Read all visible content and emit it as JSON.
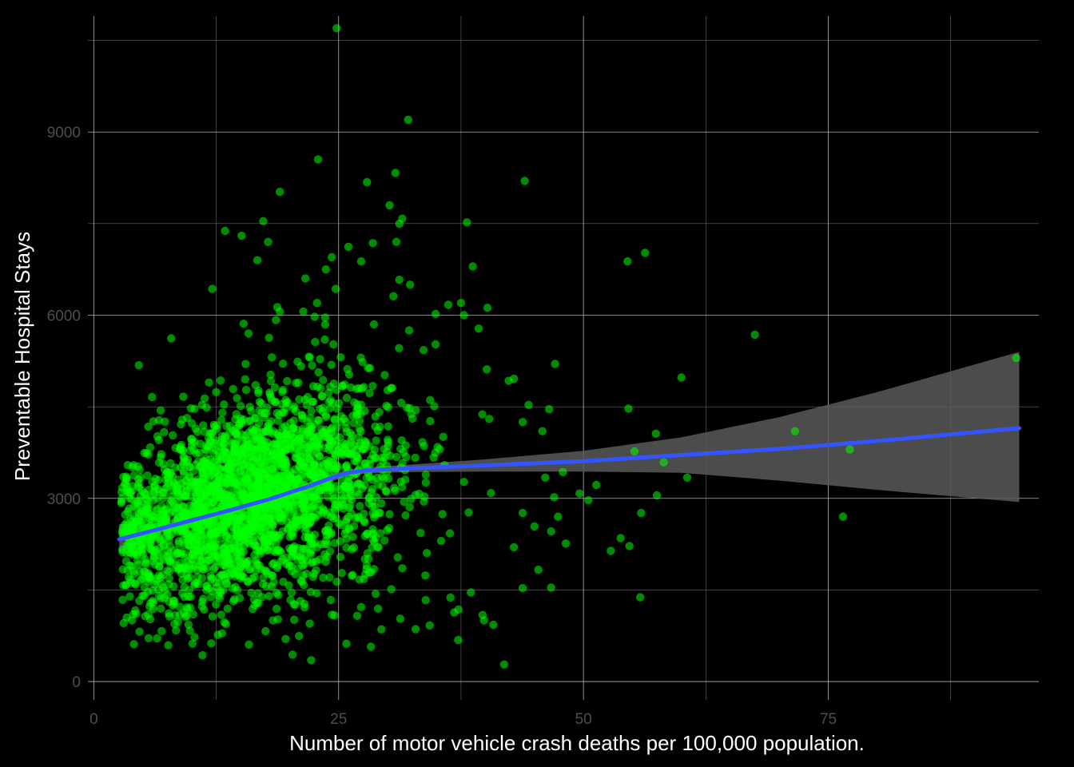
{
  "chart_data": {
    "type": "scatter",
    "title": "",
    "xlabel": "Number of motor vehicle crash deaths per 100,000 population.",
    "ylabel": "Preventable Hospital Stays",
    "xlim": [
      -0.6,
      96.5
    ],
    "ylim": [
      -300,
      10900
    ],
    "x_ticks": [
      0,
      25,
      50,
      75
    ],
    "y_ticks": [
      0,
      3000,
      6000,
      9000
    ],
    "grid": true,
    "background": "dark",
    "colors": {
      "background": "#000000",
      "grid_major": "#b3b3b3",
      "grid_minor": "#666666",
      "points": "#00ff00",
      "trend_line": "#3355ff",
      "confidence_band": "#595959",
      "tick_labels": "#4d4d4d",
      "axis_titles": "#ffffff"
    },
    "series": [
      {
        "points": [
          [
            24.8,
            10700
          ],
          [
            32.1,
            9200
          ],
          [
            22.9,
            8550
          ],
          [
            30.8,
            8330
          ],
          [
            27.9,
            8180
          ],
          [
            19.0,
            8020
          ],
          [
            44.0,
            8200
          ],
          [
            30.2,
            7800
          ],
          [
            31.2,
            7500
          ],
          [
            31.5,
            7580
          ],
          [
            38.1,
            7520
          ],
          [
            17.3,
            7540
          ],
          [
            13.4,
            7380
          ],
          [
            15.1,
            7300
          ],
          [
            17.8,
            7200
          ],
          [
            28.5,
            7180
          ],
          [
            30.9,
            7200
          ],
          [
            26.0,
            7120
          ],
          [
            56.3,
            7020
          ],
          [
            54.5,
            6880
          ],
          [
            24.3,
            6950
          ],
          [
            27.3,
            6880
          ],
          [
            16.7,
            6900
          ],
          [
            23.7,
            6750
          ],
          [
            38.7,
            6800
          ],
          [
            21.6,
            6600
          ],
          [
            31.2,
            6580
          ],
          [
            12.1,
            6430
          ],
          [
            24.7,
            6430
          ],
          [
            32.3,
            6500
          ],
          [
            30.6,
            6310
          ],
          [
            22.8,
            6200
          ],
          [
            36.2,
            6170
          ],
          [
            37.5,
            6200
          ],
          [
            40.2,
            6120
          ],
          [
            21.4,
            6060
          ],
          [
            34.9,
            6020
          ],
          [
            37.8,
            6000
          ],
          [
            19.0,
            6060
          ],
          [
            18.6,
            5920
          ],
          [
            28.6,
            5850
          ],
          [
            15.3,
            5860
          ],
          [
            39.3,
            5780
          ],
          [
            32.2,
            5750
          ],
          [
            15.8,
            5700
          ],
          [
            67.5,
            5680
          ],
          [
            22.6,
            5560
          ],
          [
            17.9,
            5630
          ],
          [
            7.9,
            5620
          ],
          [
            94.2,
            5300
          ],
          [
            60.0,
            4980
          ],
          [
            47.1,
            5200
          ],
          [
            42.9,
            4960
          ],
          [
            4.6,
            5180
          ],
          [
            54.6,
            4470
          ],
          [
            44.4,
            4530
          ],
          [
            46.5,
            4460
          ],
          [
            45.8,
            4100
          ],
          [
            43.8,
            4250
          ],
          [
            57.4,
            4060
          ],
          [
            71.6,
            4100
          ],
          [
            77.2,
            3800
          ],
          [
            55.2,
            3770
          ],
          [
            58.2,
            3590
          ],
          [
            47.9,
            3430
          ],
          [
            51.3,
            3220
          ],
          [
            46.1,
            3340
          ],
          [
            49.6,
            3080
          ],
          [
            60.6,
            3340
          ],
          [
            57.5,
            3050
          ],
          [
            47.0,
            3020
          ],
          [
            50.5,
            2970
          ],
          [
            47.4,
            2700
          ],
          [
            55.9,
            2760
          ],
          [
            43.8,
            2760
          ],
          [
            53.8,
            2350
          ],
          [
            54.7,
            2220
          ],
          [
            52.8,
            2140
          ],
          [
            48.2,
            2260
          ],
          [
            45.0,
            2540
          ],
          [
            46.7,
            2460
          ],
          [
            42.9,
            2200
          ],
          [
            45.4,
            1830
          ],
          [
            46.7,
            1540
          ],
          [
            43.8,
            1530
          ],
          [
            76.5,
            2700
          ],
          [
            55.8,
            1380
          ],
          [
            41.9,
            280
          ],
          [
            34.3,
            920
          ],
          [
            37.2,
            680
          ],
          [
            39.7,
            1090
          ],
          [
            40.8,
            930
          ],
          [
            38.5,
            1460
          ],
          [
            36.8,
            1130
          ],
          [
            31.3,
            1030
          ],
          [
            27.3,
            1220
          ],
          [
            28.3,
            570
          ],
          [
            25.8,
            620
          ],
          [
            22.2,
            350
          ],
          [
            20.3,
            440
          ],
          [
            18.3,
            1000
          ],
          [
            11.1,
            430
          ],
          [
            5.6,
            710
          ],
          [
            3.9,
            1000
          ],
          [
            8.4,
            840
          ]
        ]
      }
    ],
    "trend": {
      "method": "loess",
      "line": [
        [
          2.6,
          2330
        ],
        [
          6.0,
          2470
        ],
        [
          10.0,
          2640
        ],
        [
          14.0,
          2810
        ],
        [
          18.0,
          2990
        ],
        [
          22.0,
          3200
        ],
        [
          24.5,
          3350
        ],
        [
          26.0,
          3420
        ],
        [
          28.0,
          3460
        ],
        [
          32.0,
          3490
        ],
        [
          40.0,
          3540
        ],
        [
          50.0,
          3610
        ],
        [
          60.0,
          3710
        ],
        [
          70.0,
          3810
        ],
        [
          80.0,
          3940
        ],
        [
          94.5,
          4150
        ]
      ],
      "band_upper": [
        [
          2.6,
          2580
        ],
        [
          6.0,
          2580
        ],
        [
          10.0,
          2710
        ],
        [
          14.0,
          2870
        ],
        [
          18.0,
          3050
        ],
        [
          22.0,
          3260
        ],
        [
          24.5,
          3410
        ],
        [
          26.0,
          3470
        ],
        [
          28.0,
          3510
        ],
        [
          32.0,
          3550
        ],
        [
          40.0,
          3640
        ],
        [
          50.0,
          3780
        ],
        [
          60.0,
          4000
        ],
        [
          70.0,
          4330
        ],
        [
          80.0,
          4740
        ],
        [
          94.5,
          5400
        ]
      ],
      "band_lower": [
        [
          2.6,
          2120
        ],
        [
          6.0,
          2330
        ],
        [
          10.0,
          2560
        ],
        [
          14.0,
          2750
        ],
        [
          18.0,
          2930
        ],
        [
          22.0,
          3140
        ],
        [
          24.5,
          3290
        ],
        [
          26.0,
          3370
        ],
        [
          28.0,
          3410
        ],
        [
          32.0,
          3430
        ],
        [
          40.0,
          3440
        ],
        [
          50.0,
          3440
        ],
        [
          60.0,
          3420
        ],
        [
          70.0,
          3290
        ],
        [
          80.0,
          3140
        ],
        [
          94.5,
          2940
        ]
      ]
    }
  }
}
